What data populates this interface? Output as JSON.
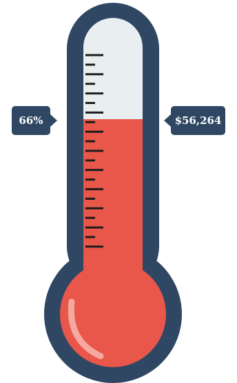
{
  "thermometer": {
    "percent_label": "66%",
    "amount_label": "$56,264",
    "fill_fraction": 0.66,
    "colors": {
      "outline": "#2f4763",
      "fill": "#e8574a",
      "empty": "#e9eef0",
      "tick": "#1c1c1c"
    }
  }
}
